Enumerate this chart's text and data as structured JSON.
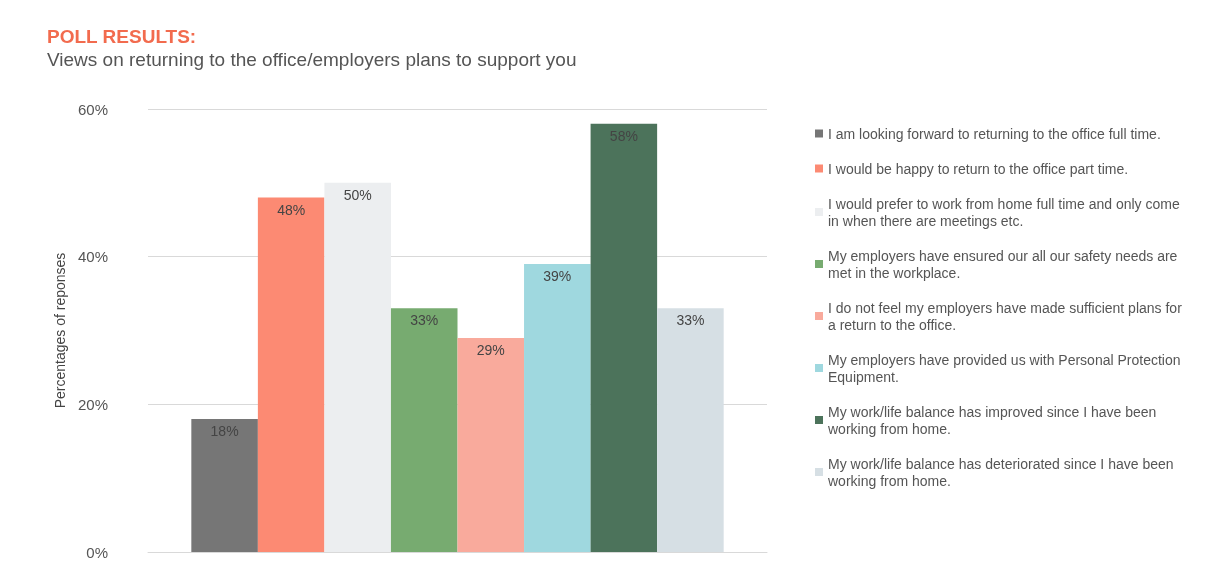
{
  "chart_data": {
    "type": "bar",
    "title": "POLL RESULTS:",
    "subtitle": "Views on returning to the office/employers plans to support you",
    "ylabel": "Percentages of reponses",
    "categories": [
      null
    ],
    "ylim": [
      0,
      60
    ],
    "yticks": [
      {
        "value": 0,
        "label": "0%"
      },
      {
        "value": 20,
        "label": "20%"
      },
      {
        "value": 40,
        "label": "40%"
      },
      {
        "value": 60,
        "label": "60%"
      }
    ],
    "grid": "y",
    "legend": "right",
    "series": [
      {
        "name": "I am looking forward to returning to the office full time.",
        "color": "#767676",
        "values": [
          18
        ],
        "value_labels": [
          "18%"
        ]
      },
      {
        "name": "I would be happy to return to the office part time.",
        "color": "#fc8a73",
        "values": [
          48
        ],
        "value_labels": [
          "48%"
        ]
      },
      {
        "name": "I would prefer to work from home full time and only come in when there are meetings etc.",
        "color": "#eceef0",
        "values": [
          50
        ],
        "value_labels": [
          "50%"
        ]
      },
      {
        "name": "My employers have ensured our all our safety needs are met in the workplace.",
        "color": "#77ab70",
        "values": [
          33
        ],
        "value_labels": [
          "33%"
        ]
      },
      {
        "name": "I do not feel my employers have made sufficient plans for a return to the office.",
        "color": "#f9aa9c",
        "values": [
          29
        ],
        "value_labels": [
          "29%"
        ]
      },
      {
        "name": "My employers have provided us with Personal Protection Equipment.",
        "color": "#9fd8df",
        "values": [
          39
        ],
        "value_labels": [
          "39%"
        ]
      },
      {
        "name": "My work/life balance has improved since I have been working from home.",
        "color": "#4c735b",
        "values": [
          58
        ],
        "value_labels": [
          "58%"
        ]
      },
      {
        "name": "My work/life balance has deteriorated since I have been working from home.",
        "color": "#d6dfe4",
        "values": [
          33
        ],
        "value_labels": [
          "33%"
        ]
      }
    ]
  }
}
